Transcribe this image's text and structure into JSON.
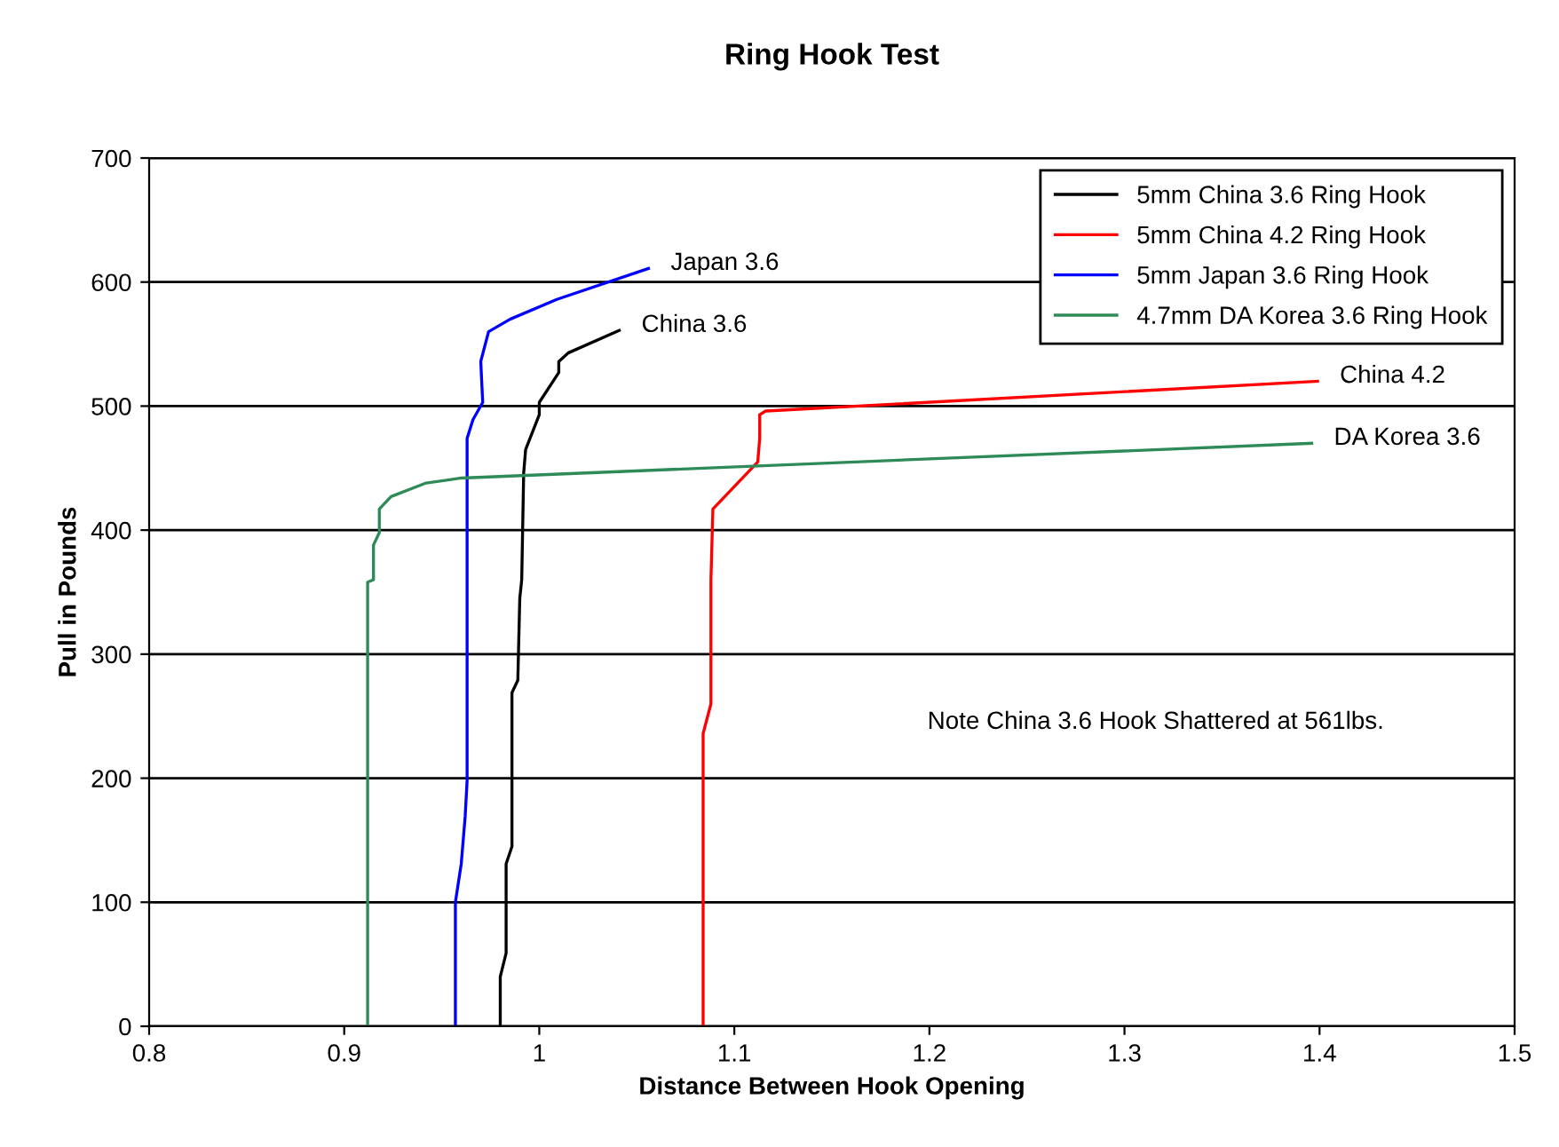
{
  "chart_data": {
    "type": "line",
    "title": "Ring Hook Test",
    "xlabel": "Distance Between Hook Opening",
    "ylabel": "Pull in Pounds",
    "xlim": [
      0.8,
      1.5
    ],
    "xticks": [
      0.8,
      0.9,
      1,
      1.1,
      1.2,
      1.3,
      1.4,
      1.5
    ],
    "ylim": [
      0,
      700
    ],
    "yticks": [
      0,
      100,
      200,
      300,
      400,
      500,
      600,
      700
    ],
    "grid": "y",
    "legend": "top right",
    "marker": "none",
    "line_style": "solid",
    "series": [
      {
        "name": "5mm China 3.6 Ring Hook",
        "color": "#000000",
        "x": [
          0.98,
          0.98,
          0.983,
          0.983,
          0.986,
          0.986,
          0.989,
          0.99,
          0.991,
          0.992,
          0.993,
          1.0,
          1.0,
          1.01,
          1.01,
          1.015,
          1.041
        ],
        "values": [
          0,
          40,
          59,
          131,
          145,
          269,
          279,
          345,
          360,
          446,
          465,
          493,
          503,
          527,
          536,
          543,
          561
        ]
      },
      {
        "name": "5mm China 4.2 Ring Hook",
        "color": "#ff0000",
        "x": [
          1.084,
          1.084,
          1.088,
          1.088,
          1.088,
          1.089,
          1.112,
          1.113,
          1.113,
          1.116,
          1.399
        ],
        "values": [
          0,
          236,
          260,
          355,
          360,
          417,
          455,
          474,
          493,
          496,
          520
        ]
      },
      {
        "name": "5mm Japan 3.6 Ring Hook",
        "color": "#0000ff",
        "x": [
          0.957,
          0.957,
          0.96,
          0.962,
          0.963,
          0.963,
          0.963,
          0.966,
          0.971,
          0.97,
          0.974,
          0.985,
          1.009,
          1.056
        ],
        "values": [
          0,
          100,
          131,
          169,
          198,
          360,
          474,
          489,
          503,
          536,
          560,
          570,
          586,
          611
        ]
      },
      {
        "name": "4.7mm DA Korea 3.6 Ring Hook",
        "color": "#2e8b57",
        "x": [
          0.912,
          0.912,
          0.915,
          0.915,
          0.918,
          0.918,
          0.924,
          0.942,
          0.96,
          1.396
        ],
        "values": [
          0,
          358,
          360,
          388,
          398,
          417,
          427,
          438,
          442,
          470
        ]
      }
    ],
    "annotations": [
      {
        "text": "Japan 3.6",
        "x": 1.056,
        "y": 611
      },
      {
        "text": "China 3.6",
        "x": 1.041,
        "y": 561
      },
      {
        "text": "China 4.2",
        "x": 1.399,
        "y": 520
      },
      {
        "text": "DA Korea 3.6",
        "x": 1.396,
        "y": 470
      },
      "Note China 3.6 Hook Shattered at 561lbs."
    ]
  }
}
